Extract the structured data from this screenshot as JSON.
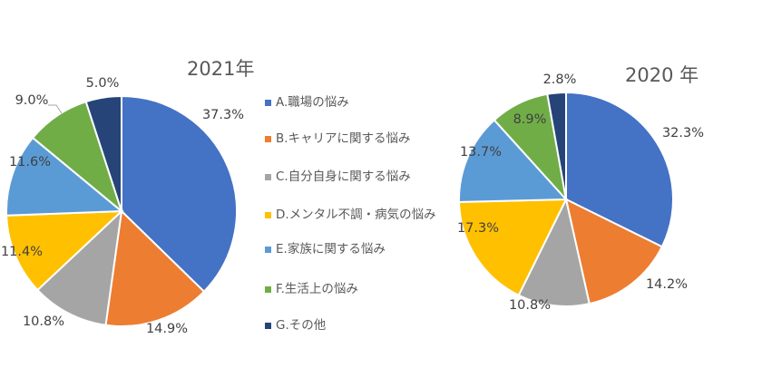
{
  "colors": {
    "A": "#4472C4",
    "B": "#ED7D31",
    "C": "#A5A5A5",
    "D": "#FFC000",
    "E": "#5B9BD5",
    "F": "#70AD47",
    "G": "#264478"
  },
  "legend": [
    {
      "key": "A",
      "label": "A.職場の悩み"
    },
    {
      "key": "B",
      "label": "B.キャリアに関する悩み"
    },
    {
      "key": "C",
      "label": "C.自分自身に関する悩み"
    },
    {
      "key": "D",
      "label": "D.メンタル不調・病気の悩み"
    },
    {
      "key": "E",
      "label": "E.家族に関する悩み"
    },
    {
      "key": "F",
      "label": "F.生活上の悩み"
    },
    {
      "key": "G",
      "label": "G.その他"
    }
  ],
  "chart_data": [
    {
      "type": "pie",
      "title": "2021年",
      "categories": [
        "A",
        "B",
        "C",
        "D",
        "E",
        "F",
        "G"
      ],
      "values": [
        37.3,
        14.9,
        10.8,
        11.4,
        11.6,
        9.0,
        5.0
      ],
      "labels": [
        "37.3%",
        "14.9%",
        "10.8%",
        "11.4%",
        "11.6%",
        "9.0%",
        "5.0%"
      ],
      "legend": "right"
    },
    {
      "type": "pie",
      "title": "2020 年",
      "categories": [
        "A",
        "B",
        "C",
        "D",
        "E",
        "F",
        "G"
      ],
      "values": [
        32.3,
        14.2,
        10.8,
        17.3,
        13.7,
        8.9,
        2.8
      ],
      "labels": [
        "32.3%",
        "14.2%",
        "10.8%",
        "17.3%",
        "13.7%",
        "8.9%",
        "2.8%"
      ],
      "legend": "none"
    }
  ]
}
